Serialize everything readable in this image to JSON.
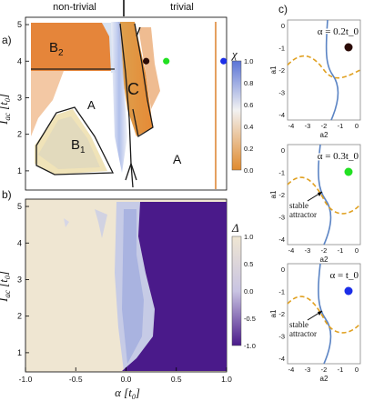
{
  "panels": {
    "a": {
      "label": "a)",
      "header_left": "non-trivial",
      "header_right": "trivial",
      "ylabel": "I_ac [t_0]",
      "regions": [
        "B2",
        "A",
        "B1",
        "C",
        "A"
      ],
      "colorbar": {
        "symbol": "χ",
        "ticks": [
          "1.0",
          "0.8",
          "0.6",
          "0.4",
          "0.2",
          "0.0"
        ],
        "top_color": "#5b74d6",
        "mid_color": "#f2f2f2",
        "bottom_color": "#e08a2e"
      },
      "markers": [
        {
          "name": "dark",
          "color": "#2a0a05",
          "alpha": 0.2,
          "I": 4.0
        },
        {
          "name": "green",
          "color": "#22e022",
          "alpha": 0.4,
          "I": 4.0
        },
        {
          "name": "blue",
          "color": "#1b2ee8",
          "alpha": 0.97,
          "I": 4.0
        }
      ],
      "yticks": [
        "1",
        "2",
        "3",
        "4",
        "5"
      ]
    },
    "b": {
      "label": "b)",
      "ylabel": "I_ac [t_0]",
      "xlabel": "α [t_0]",
      "xticks": [
        "-1.0",
        "-0.5",
        "0.0",
        "0.5",
        "1.0"
      ],
      "yticks": [
        "1",
        "2",
        "3",
        "4",
        "5"
      ],
      "colorbar": {
        "symbol": "Δ",
        "ticks": [
          "1.0",
          "0.5",
          "0.0",
          "-0.5",
          "-1.0"
        ],
        "top_color": "#efe6d2",
        "bottom_color": "#4a1a8a"
      }
    },
    "c": {
      "label": "c)",
      "xlabel": "a_2",
      "ylabel": "a_1",
      "xticks": [
        "-4",
        "-3",
        "-2",
        "-1",
        "0"
      ],
      "yticks": [
        "0",
        "-1",
        "-2",
        "-3",
        "-4"
      ],
      "subplots": [
        {
          "title": "α = 0.2t_0",
          "marker_color": "#2a0a05",
          "annotation": ""
        },
        {
          "title": "α = 0.3t_0",
          "marker_color": "#22e022",
          "annotation": "stable\nattractor"
        },
        {
          "title": "α = t_0",
          "marker_color": "#1b2ee8",
          "annotation": "stable\nattractor"
        }
      ],
      "curve_colors": {
        "solid": "#5b84c4",
        "dashed": "#e0a020"
      }
    }
  }
}
